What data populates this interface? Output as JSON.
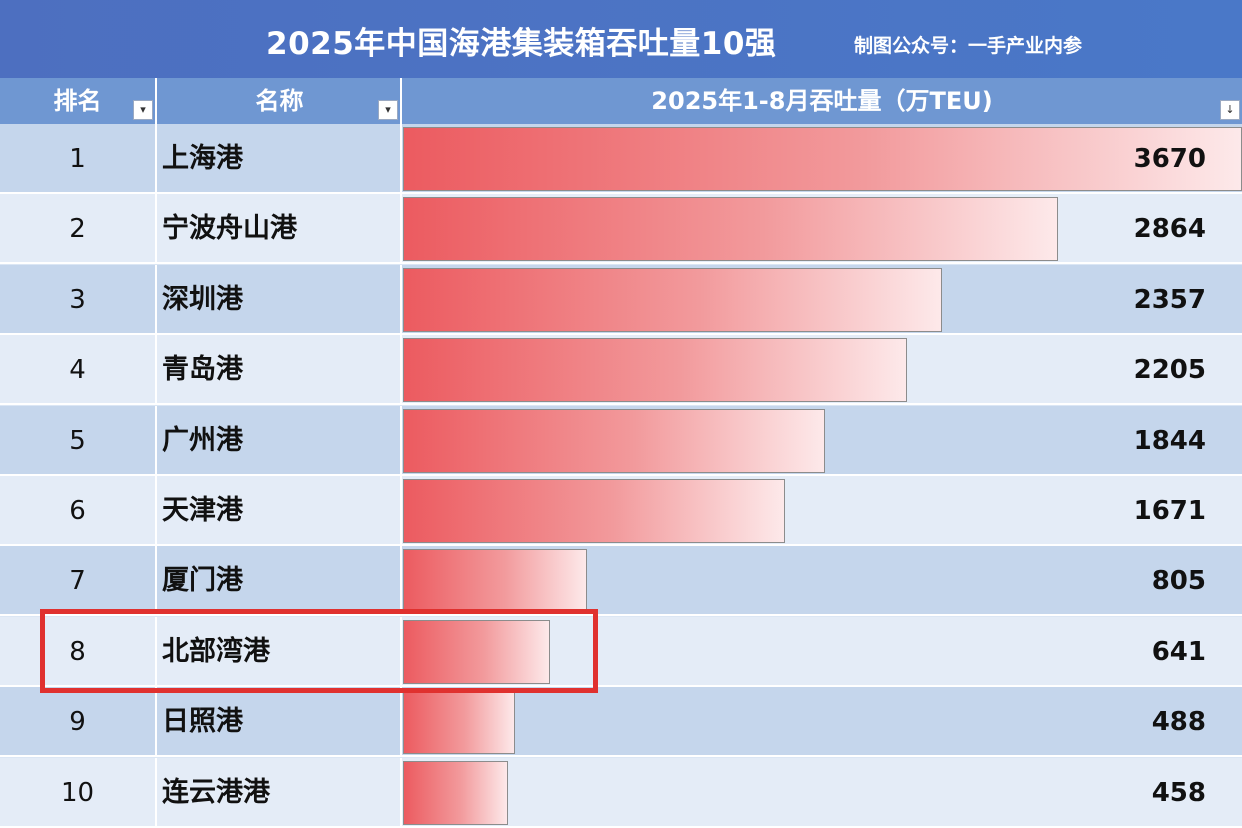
{
  "header": {
    "title": "2025年中国海港集装箱吞吐量10强",
    "subtitle": "制图公众号：一手产业内参"
  },
  "columns": {
    "rank": "排名",
    "name": "名称",
    "value": "2025年1-8月吞吐量（万TEU)"
  },
  "colors": {
    "title_bg": "#4d6fc0",
    "header_bg": "#6f97d2",
    "bar_start": "#ec5b60",
    "bar_end": "#fde9ea",
    "highlight": "#e0312f"
  },
  "highlighted_rank": 8,
  "chart_data": {
    "type": "bar",
    "orientation": "horizontal",
    "title": "2025年中国海港集装箱吞吐量10强",
    "xlabel": "2025年1-8月吞吐量（万TEU)",
    "ranks": [
      "1",
      "2",
      "3",
      "4",
      "5",
      "6",
      "7",
      "8",
      "9",
      "10"
    ],
    "categories": [
      "上海港",
      "宁波舟山港",
      "深圳港",
      "青岛港",
      "广州港",
      "天津港",
      "厦门港",
      "北部湾港",
      "日照港",
      "连云港港"
    ],
    "values": [
      3670,
      2864,
      2357,
      2205,
      1844,
      1671,
      805,
      641,
      488,
      458
    ],
    "xlim": [
      0,
      3670
    ]
  }
}
